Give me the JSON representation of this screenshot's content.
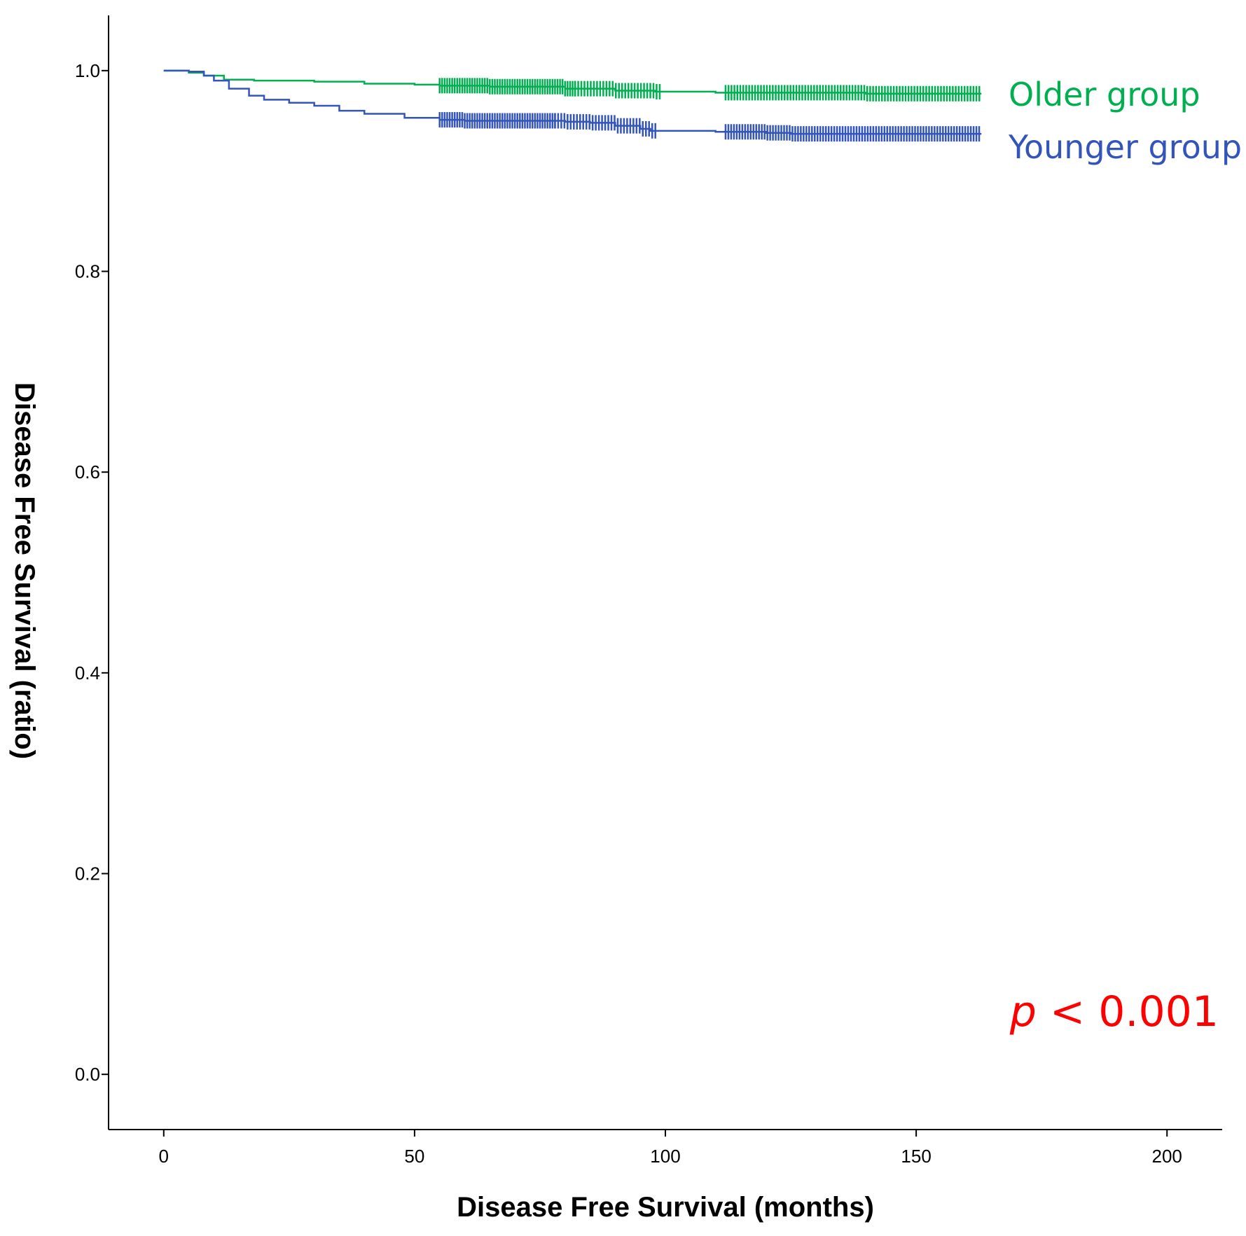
{
  "chart_data": {
    "type": "line",
    "subtype": "kaplan-meier",
    "xlabel": "Disease Free Survival (months)",
    "ylabel": "Disease Free Survival (ratio)",
    "xlim": [
      -11,
      211
    ],
    "ylim": [
      -0.055,
      1.055
    ],
    "xticks": [
      0,
      50,
      100,
      150,
      200
    ],
    "xtick_labels": [
      "0",
      "50",
      "100",
      "150",
      "200"
    ],
    "yticks": [
      0.0,
      0.2,
      0.4,
      0.6,
      0.8,
      1.0
    ],
    "ytick_labels": [
      "0.0",
      "0.2",
      "0.4",
      "0.6",
      "0.8",
      "1.0"
    ],
    "grid": false,
    "legend": "right",
    "annotation": {
      "italic": "p",
      "text": " < 0.001",
      "color": "#ff0000",
      "position": "bottom-right"
    },
    "series": [
      {
        "name": "Older group",
        "color": "#00b050",
        "points": [
          [
            0,
            1.0
          ],
          [
            5,
            0.998
          ],
          [
            8,
            0.995
          ],
          [
            12,
            0.991
          ],
          [
            18,
            0.99
          ],
          [
            30,
            0.989
          ],
          [
            40,
            0.987
          ],
          [
            50,
            0.986
          ],
          [
            55,
            0.985
          ],
          [
            65,
            0.984
          ],
          [
            80,
            0.982
          ],
          [
            90,
            0.98
          ],
          [
            98,
            0.979
          ],
          [
            110,
            0.978
          ],
          [
            120,
            0.978
          ],
          [
            140,
            0.977
          ],
          [
            163,
            0.977
          ]
        ],
        "censor_ranges": [
          [
            55,
            82,
            2.0
          ],
          [
            82,
            99,
            1.6
          ],
          [
            112,
            163,
            1.7
          ]
        ]
      },
      {
        "name": "Younger group",
        "color": "#3355bb",
        "points": [
          [
            0,
            1.0
          ],
          [
            5,
            0.999
          ],
          [
            8,
            0.995
          ],
          [
            10,
            0.99
          ],
          [
            13,
            0.982
          ],
          [
            17,
            0.975
          ],
          [
            20,
            0.971
          ],
          [
            25,
            0.968
          ],
          [
            30,
            0.965
          ],
          [
            35,
            0.96
          ],
          [
            40,
            0.957
          ],
          [
            48,
            0.953
          ],
          [
            55,
            0.951
          ],
          [
            60,
            0.95
          ],
          [
            70,
            0.95
          ],
          [
            80,
            0.949
          ],
          [
            85,
            0.948
          ],
          [
            90,
            0.945
          ],
          [
            95,
            0.942
          ],
          [
            97,
            0.94
          ],
          [
            100,
            0.94
          ],
          [
            110,
            0.939
          ],
          [
            120,
            0.938
          ],
          [
            125,
            0.937
          ],
          [
            140,
            0.937
          ],
          [
            163,
            0.937
          ]
        ],
        "censor_ranges": [
          [
            55,
            78,
            2.0
          ],
          [
            78,
            98,
            1.6
          ],
          [
            112,
            163,
            1.8
          ]
        ]
      }
    ]
  }
}
